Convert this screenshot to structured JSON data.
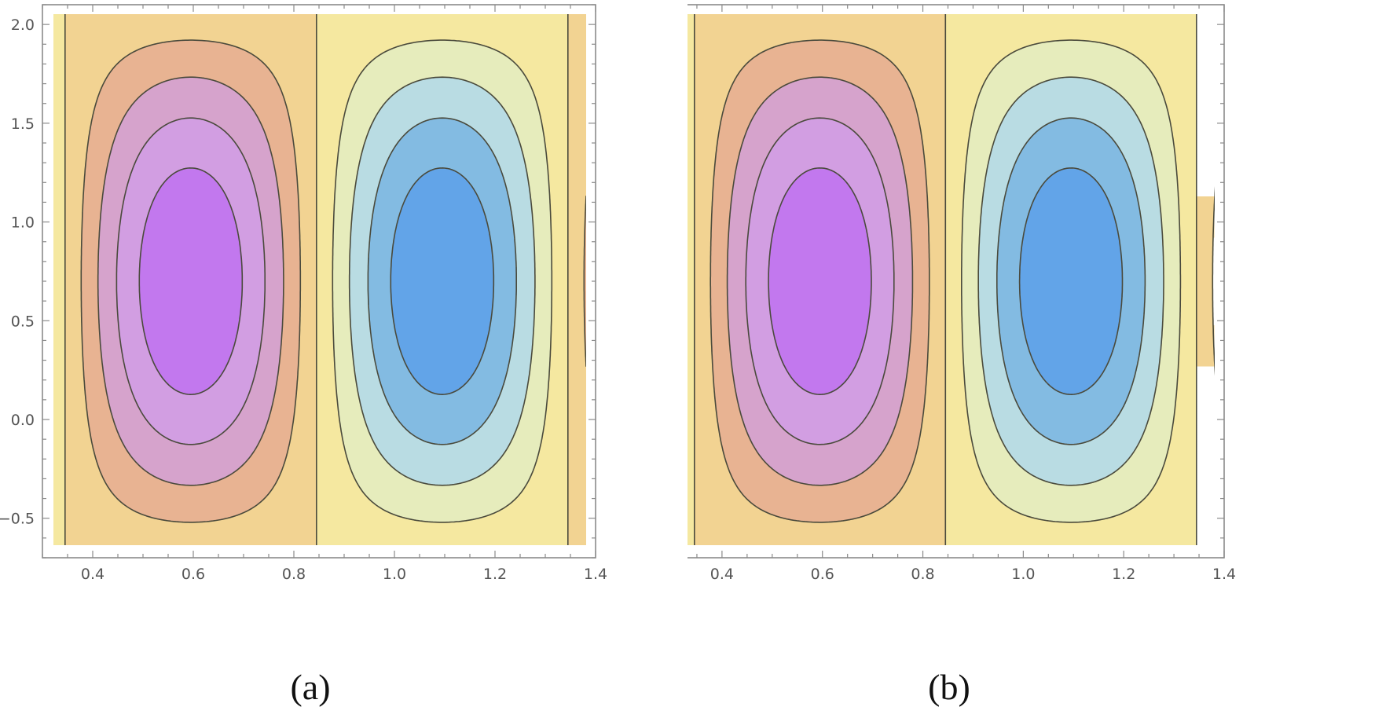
{
  "chart_data": [
    {
      "type": "contour",
      "caption": "(a)",
      "xlim": [
        0.3,
        1.4
      ],
      "ylim": [
        -0.7,
        2.1
      ],
      "x_ticks": [
        0.4,
        0.6,
        0.8,
        1.0,
        1.2,
        1.4
      ],
      "x_tick_labels": [
        "0.4",
        "0.6",
        "0.8",
        "1.0",
        "1.2",
        "1.4"
      ],
      "y_ticks": [
        -0.5,
        0.0,
        0.5,
        1.0,
        1.5,
        2.0
      ],
      "y_tick_labels": [
        "−0.5",
        "0.0",
        "0.5",
        "1.0",
        "1.5",
        "2.0"
      ],
      "field": {
        "form": "sin(2*pi*(x - 0.345)) * sin(pi*(y + 0.7)/2.8)",
        "zero_lines_x": [
          0.345,
          0.845,
          1.345
        ],
        "cell_centers": [
          [
            0.6,
            1.0
          ],
          [
            1.1,
            1.0
          ]
        ]
      },
      "contour_levels": [
        -0.8,
        -0.6,
        -0.4,
        -0.2,
        0.0,
        0.2,
        0.4,
        0.6,
        0.8
      ],
      "band_colors": [
        "#62a4e8",
        "#83bbe2",
        "#b9dce3",
        "#e6ecbc",
        "#f5e8a0",
        "#f2d392",
        "#e8b392",
        "#d6a3cc",
        "#d29ee2",
        "#c278ee"
      ],
      "line_color": "#4a4a3c",
      "grid": false,
      "legend": "none"
    },
    {
      "type": "contour",
      "caption": "(b)",
      "xlim": [
        0.3,
        1.4
      ],
      "ylim": [
        -0.7,
        2.1
      ],
      "x_ticks": [
        0.4,
        0.6,
        0.8,
        1.0,
        1.2,
        1.4
      ],
      "x_tick_labels": [
        "0.4",
        "0.6",
        "0.8",
        "1.0",
        "1.2",
        "1.4"
      ],
      "y_ticks": [
        -0.5,
        0.0,
        0.5,
        1.0,
        1.5,
        2.0
      ],
      "y_tick_labels": [
        "−0.5",
        "0.0",
        "0.5",
        "1.0",
        "1.5",
        "2.0"
      ],
      "field": {
        "form": "sin(2*pi*(x - 0.345)) * sin(pi*(y + 0.7)/2.8)",
        "zero_lines_x": [
          0.345,
          0.845,
          1.345
        ],
        "cell_centers": [
          [
            0.6,
            1.0
          ],
          [
            1.1,
            1.0
          ]
        ]
      },
      "contour_levels": [
        -0.8,
        -0.6,
        -0.4,
        -0.2,
        0.0,
        0.2,
        0.4,
        0.6,
        0.8
      ],
      "band_colors": [
        "#62a4e8",
        "#83bbe2",
        "#b9dce3",
        "#e6ecbc",
        "#f5e8a0",
        "#f2d392",
        "#e8b392",
        "#d6a3cc",
        "#d29ee2",
        "#c278ee"
      ],
      "line_color": "#4a4a3c",
      "grid": false,
      "legend": "none"
    }
  ]
}
